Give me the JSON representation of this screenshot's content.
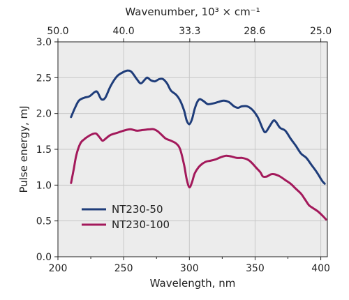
{
  "chart_data": {
    "type": "line",
    "xlabel": "Wavelength, nm",
    "ylabel": "Pulse energy, mJ",
    "top_xlabel": "Wavenumber, 10³ × cm⁻¹",
    "xlim": [
      200,
      405
    ],
    "ylim": [
      0,
      3
    ],
    "x_ticks": [
      200,
      250,
      300,
      350,
      400
    ],
    "x_tick_labels": [
      "200",
      "250",
      "300",
      "350",
      "400"
    ],
    "x_minor_ticks": [
      225,
      275,
      325,
      375
    ],
    "y_ticks": [
      0,
      0.5,
      1,
      1.5,
      2,
      2.5,
      3
    ],
    "y_tick_labels": [
      "0.0",
      "0.5",
      "1.0",
      "1.5",
      "2.0",
      "2.5",
      "3.0"
    ],
    "top_tick_labels": [
      "50.0",
      "40.0",
      "33.3",
      "28.6",
      "25.0"
    ],
    "grid": true,
    "legend_position": "lower-left",
    "series": [
      {
        "name": "NT230-50",
        "color": "#1f3d7a",
        "points": [
          [
            210,
            1.95
          ],
          [
            213,
            2.08
          ],
          [
            216,
            2.18
          ],
          [
            220,
            2.22
          ],
          [
            224,
            2.24
          ],
          [
            228,
            2.3
          ],
          [
            230,
            2.3
          ],
          [
            233,
            2.2
          ],
          [
            236,
            2.22
          ],
          [
            240,
            2.38
          ],
          [
            245,
            2.52
          ],
          [
            250,
            2.58
          ],
          [
            253,
            2.6
          ],
          [
            256,
            2.58
          ],
          [
            260,
            2.48
          ],
          [
            263,
            2.42
          ],
          [
            266,
            2.47
          ],
          [
            268,
            2.5
          ],
          [
            271,
            2.46
          ],
          [
            274,
            2.45
          ],
          [
            277,
            2.48
          ],
          [
            280,
            2.48
          ],
          [
            283,
            2.42
          ],
          [
            286,
            2.32
          ],
          [
            290,
            2.26
          ],
          [
            293,
            2.18
          ],
          [
            296,
            2.04
          ],
          [
            298,
            1.9
          ],
          [
            300,
            1.85
          ],
          [
            302,
            1.92
          ],
          [
            304,
            2.06
          ],
          [
            306,
            2.16
          ],
          [
            308,
            2.2
          ],
          [
            311,
            2.17
          ],
          [
            314,
            2.13
          ],
          [
            318,
            2.14
          ],
          [
            322,
            2.16
          ],
          [
            326,
            2.18
          ],
          [
            330,
            2.16
          ],
          [
            334,
            2.1
          ],
          [
            337,
            2.08
          ],
          [
            340,
            2.1
          ],
          [
            344,
            2.1
          ],
          [
            348,
            2.05
          ],
          [
            352,
            1.95
          ],
          [
            356,
            1.78
          ],
          [
            358,
            1.74
          ],
          [
            361,
            1.82
          ],
          [
            364,
            1.9
          ],
          [
            366,
            1.88
          ],
          [
            369,
            1.8
          ],
          [
            373,
            1.76
          ],
          [
            377,
            1.65
          ],
          [
            381,
            1.55
          ],
          [
            385,
            1.44
          ],
          [
            389,
            1.38
          ],
          [
            393,
            1.28
          ],
          [
            397,
            1.18
          ],
          [
            401,
            1.06
          ],
          [
            403,
            1.02
          ]
        ]
      },
      {
        "name": "NT230-100",
        "color": "#a3195b",
        "points": [
          [
            210,
            1.03
          ],
          [
            212,
            1.22
          ],
          [
            214,
            1.42
          ],
          [
            217,
            1.58
          ],
          [
            220,
            1.64
          ],
          [
            223,
            1.68
          ],
          [
            226,
            1.71
          ],
          [
            229,
            1.72
          ],
          [
            232,
            1.66
          ],
          [
            234,
            1.62
          ],
          [
            237,
            1.66
          ],
          [
            240,
            1.7
          ],
          [
            245,
            1.73
          ],
          [
            250,
            1.76
          ],
          [
            255,
            1.78
          ],
          [
            260,
            1.76
          ],
          [
            265,
            1.77
          ],
          [
            270,
            1.78
          ],
          [
            273,
            1.78
          ],
          [
            276,
            1.75
          ],
          [
            279,
            1.7
          ],
          [
            282,
            1.65
          ],
          [
            286,
            1.62
          ],
          [
            290,
            1.58
          ],
          [
            293,
            1.5
          ],
          [
            296,
            1.28
          ],
          [
            298,
            1.08
          ],
          [
            300,
            0.97
          ],
          [
            302,
            1.04
          ],
          [
            304,
            1.16
          ],
          [
            307,
            1.25
          ],
          [
            310,
            1.3
          ],
          [
            313,
            1.33
          ],
          [
            316,
            1.34
          ],
          [
            320,
            1.36
          ],
          [
            324,
            1.39
          ],
          [
            328,
            1.41
          ],
          [
            332,
            1.4
          ],
          [
            336,
            1.38
          ],
          [
            340,
            1.38
          ],
          [
            344,
            1.36
          ],
          [
            347,
            1.32
          ],
          [
            351,
            1.24
          ],
          [
            354,
            1.18
          ],
          [
            356,
            1.12
          ],
          [
            359,
            1.12
          ],
          [
            362,
            1.15
          ],
          [
            365,
            1.15
          ],
          [
            369,
            1.12
          ],
          [
            373,
            1.07
          ],
          [
            377,
            1.02
          ],
          [
            381,
            0.95
          ],
          [
            385,
            0.88
          ],
          [
            388,
            0.8
          ],
          [
            391,
            0.72
          ],
          [
            394,
            0.68
          ],
          [
            398,
            0.63
          ],
          [
            402,
            0.56
          ],
          [
            404,
            0.52
          ]
        ]
      }
    ]
  }
}
